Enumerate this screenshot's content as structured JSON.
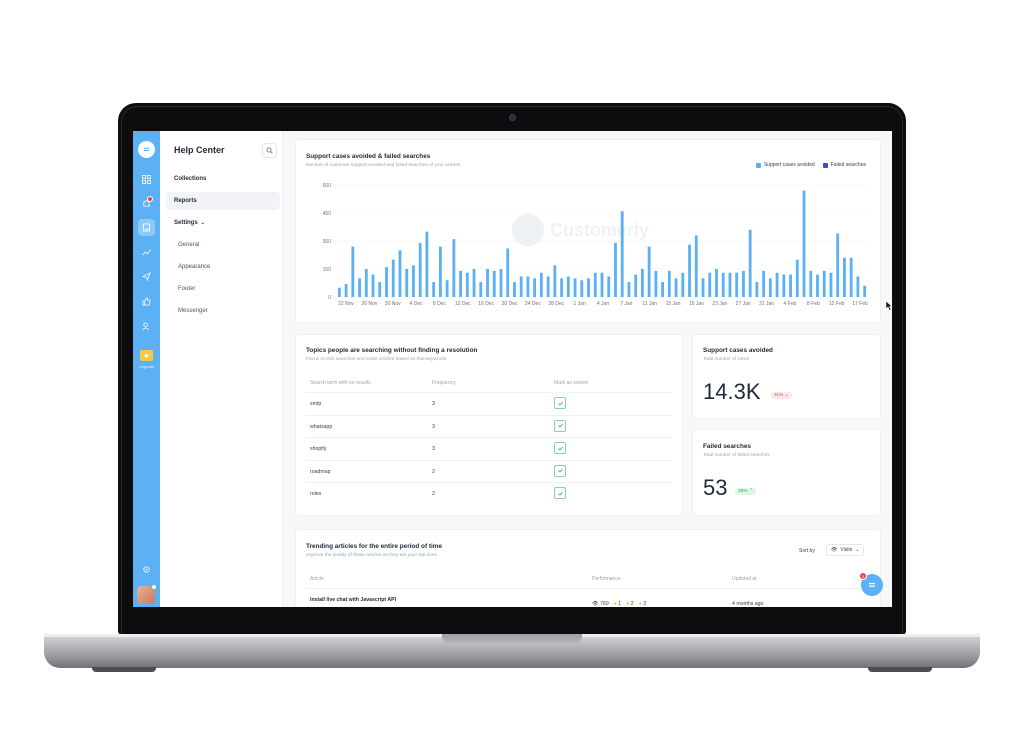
{
  "app": {
    "logo_icon": "chat-bubble-icon",
    "rail_icons": [
      "dashboard-grid-icon",
      "notification-icon",
      "book-icon",
      "chart-trend-icon",
      "send-icon",
      "thumb-up-icon",
      "users-icon"
    ],
    "upgrade_label": "Upgrade",
    "accent": "#5bb1f4"
  },
  "sidebar": {
    "title": "Help Center",
    "items": [
      {
        "label": "Collections"
      },
      {
        "label": "Reports"
      },
      {
        "label": "Settings"
      },
      {
        "label": "General"
      },
      {
        "label": "Appearance"
      },
      {
        "label": "Footer"
      },
      {
        "label": "Messenger"
      }
    ]
  },
  "support_chart": {
    "title": "Support cases avoided & failed searches",
    "subtitle": "Number of customer support avoided and failed searches of your articles",
    "legend": [
      {
        "label": "Support cases avoided",
        "color": "#5bb1f4"
      },
      {
        "label": "Failed searches",
        "color": "#3b4bd8"
      }
    ],
    "watermark": "Customerly"
  },
  "chart_data": {
    "type": "bar",
    "ylim": [
      0,
      600
    ],
    "yticks": [
      0,
      150,
      300,
      450,
      600
    ],
    "xticks": [
      "22 Nov",
      "26 Nov",
      "30 Nov",
      "4 Dec",
      "8 Dec",
      "12 Dec",
      "16 Dec",
      "20 Dec",
      "24 Dec",
      "28 Dec",
      "1 Jan",
      "4 Jan",
      "7 Jan",
      "11 Jan",
      "15 Jan",
      "19 Jan",
      "23 Jan",
      "27 Jan",
      "31 Jan",
      "4 Feb",
      "8 Feb",
      "12 Feb",
      "17 Feb"
    ],
    "series": [
      {
        "name": "Support cases avoided",
        "color": "#5bb1f4",
        "values": [
          50,
          70,
          270,
          100,
          150,
          120,
          80,
          160,
          200,
          250,
          150,
          170,
          290,
          350,
          80,
          270,
          90,
          310,
          140,
          130,
          150,
          80,
          150,
          140,
          150,
          260,
          80,
          110,
          110,
          100,
          130,
          110,
          170,
          100,
          110,
          100,
          90,
          100,
          130,
          130,
          110,
          290,
          460,
          80,
          120,
          150,
          270,
          140,
          80,
          140,
          100,
          130,
          280,
          330,
          100,
          130,
          150,
          130,
          130,
          130,
          140,
          360,
          80,
          140,
          100,
          130,
          120,
          120,
          200,
          570,
          140,
          120,
          140,
          130,
          340,
          210,
          210,
          110,
          60
        ]
      }
    ]
  },
  "topics": {
    "title": "Topics people are searching without finding a resolution",
    "subtitle": "Focus on this searches and make articles based on that keywords",
    "headers": [
      "Search term with no results",
      "Frequency",
      "Mark as solved"
    ],
    "rows": [
      {
        "term": "smtp",
        "freq": "3"
      },
      {
        "term": "whatsapp",
        "freq": "3"
      },
      {
        "term": "shopify",
        "freq": "3"
      },
      {
        "term": "roadmap",
        "freq": "2"
      },
      {
        "term": "roles",
        "freq": "2"
      }
    ]
  },
  "avoided": {
    "title": "Support cases avoided",
    "subtitle": "Total number of views",
    "value": "14.3K",
    "change": "11% ⌄"
  },
  "failed": {
    "title": "Failed searches",
    "subtitle": "Total number of failed searches",
    "value": "53",
    "change": "36% ⌃"
  },
  "trending": {
    "title": "Trending articles for the entire period of time",
    "subtitle": "Improve the quality of these articles as they are your top ones.",
    "sort_label": "Sort by",
    "sort_value": "Visits",
    "headers": [
      "Article",
      "Performance",
      "Updated at"
    ],
    "rows": [
      {
        "article": "Install live chat with Javascript API",
        "views": "760",
        "r1": "1",
        "r2": "2",
        "r3": "3",
        "updated": "4 months ago"
      }
    ]
  },
  "chat_fab": {
    "badge": "3"
  }
}
